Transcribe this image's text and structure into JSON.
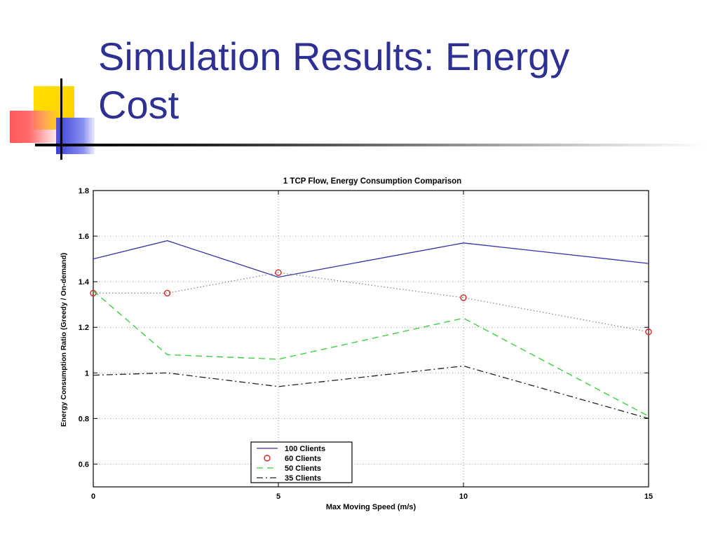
{
  "slide": {
    "title_line1": "Simulation Results: Energy",
    "title_line2": "Cost"
  },
  "colors": {
    "title": "#2e3192",
    "series_100": "#3333aa",
    "series_60": "#dd2222",
    "series_50": "#33cc33",
    "series_35": "#222222"
  },
  "chart_data": {
    "type": "line",
    "title": "1 TCP Flow, Energy Consumption Comparison",
    "xlabel": "Max Moving Speed (m/s)",
    "ylabel": "Energy Consumption Ratio (Greedy / On-demand)",
    "xlim": [
      0,
      15
    ],
    "ylim": [
      0.5,
      1.8
    ],
    "xticks": [
      0,
      5,
      10,
      15
    ],
    "yticks": [
      0.6,
      0.8,
      1,
      1.2,
      1.4,
      1.6,
      1.8
    ],
    "grid": true,
    "legend_position": "bottom-center",
    "series": [
      {
        "name": "100 Clients",
        "style": "solid",
        "color": "#3333aa",
        "marker": "none",
        "x": [
          0,
          2,
          5,
          10,
          15
        ],
        "y": [
          1.5,
          1.58,
          1.42,
          1.57,
          1.48
        ]
      },
      {
        "name": "60 Clients",
        "style": "dotted",
        "color": "#dd2222",
        "marker": "circle",
        "x": [
          0,
          2,
          5,
          10,
          15
        ],
        "y": [
          1.35,
          1.35,
          1.44,
          1.33,
          1.18
        ]
      },
      {
        "name": "50 Clients",
        "style": "dashed",
        "color": "#33cc33",
        "marker": "none",
        "x": [
          0,
          2,
          5,
          10,
          15
        ],
        "y": [
          1.36,
          1.08,
          1.06,
          1.24,
          0.81
        ]
      },
      {
        "name": "35 Clients",
        "style": "dashdot",
        "color": "#222222",
        "marker": "none",
        "x": [
          0,
          2,
          5,
          10,
          15
        ],
        "y": [
          0.99,
          1.0,
          0.94,
          1.03,
          0.8
        ]
      }
    ]
  }
}
